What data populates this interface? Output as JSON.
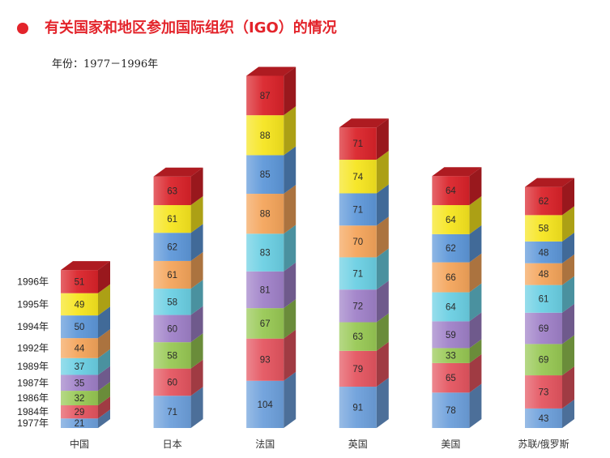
{
  "theme": {
    "accent_color": "#e3242b"
  },
  "chart_data": {
    "type": "bar",
    "stacked": true,
    "three_d": true,
    "title": "有关国家和地区参加国际组织（IGO）的情况",
    "subtitle": "年份：1977－1996年",
    "categories": [
      "中国",
      "日本",
      "法国",
      "英国",
      "美国",
      "苏联/俄罗斯"
    ],
    "series": [
      {
        "name": "1977年",
        "color": "#6c9fdb",
        "values": [
          21,
          71,
          104,
          91,
          78,
          43
        ]
      },
      {
        "name": "1984年",
        "color": "#e4545f",
        "values": [
          29,
          60,
          93,
          79,
          65,
          73
        ]
      },
      {
        "name": "1986年",
        "color": "#97c853",
        "values": [
          32,
          58,
          67,
          63,
          33,
          69
        ]
      },
      {
        "name": "1987年",
        "color": "#9f80c8",
        "values": [
          35,
          60,
          81,
          72,
          59,
          69
        ]
      },
      {
        "name": "1989年",
        "color": "#6acfe3",
        "values": [
          37,
          58,
          83,
          71,
          64,
          61
        ]
      },
      {
        "name": "1992年",
        "color": "#f4a45a",
        "values": [
          44,
          61,
          88,
          70,
          66,
          48
        ]
      },
      {
        "name": "1994年",
        "color": "#5d97d9",
        "values": [
          50,
          62,
          85,
          71,
          62,
          48
        ]
      },
      {
        "name": "1995年",
        "color": "#f6e51e",
        "values": [
          49,
          61,
          88,
          74,
          64,
          58
        ]
      },
      {
        "name": "1996年",
        "color": "#da2229",
        "values": [
          51,
          63,
          87,
          71,
          64,
          62
        ]
      }
    ],
    "data_labels": true,
    "legend": "left",
    "grid": false
  }
}
